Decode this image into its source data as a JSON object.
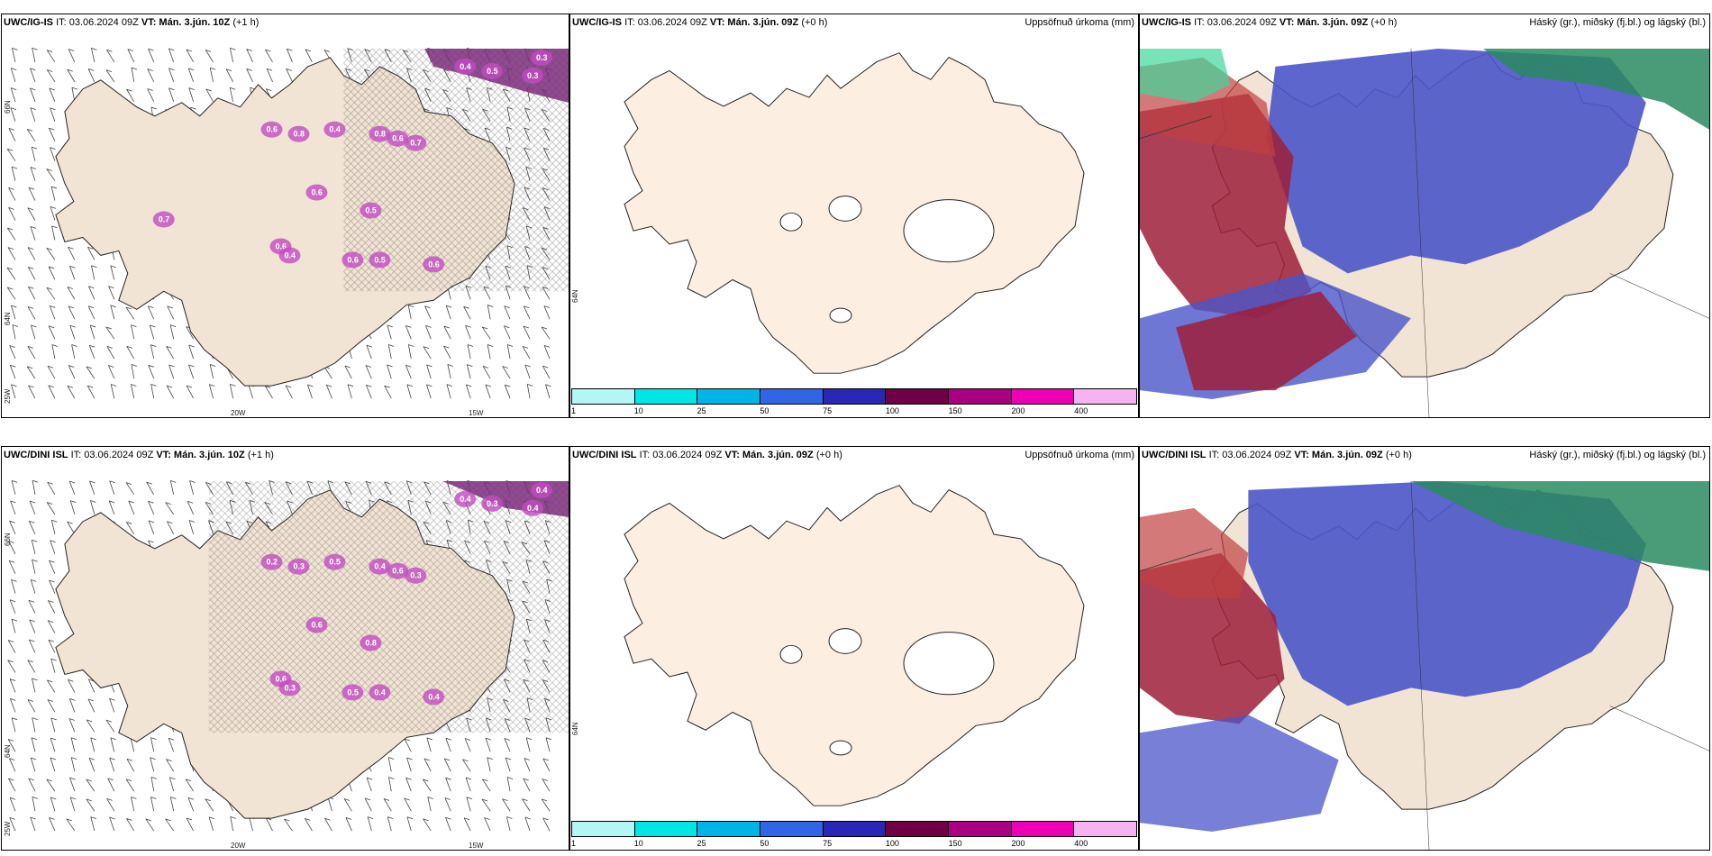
{
  "rows": [
    {
      "model_label": "UWC/IG-IS",
      "panels": [
        {
          "model": "UWC/IG-IS",
          "it": "IT: 03.06.2024 09Z",
          "vt": "VT: Mán. 3.jún. 10Z",
          "lead": "(+1 h)",
          "right_title": ""
        },
        {
          "model": "UWC/IG-IS",
          "it": "IT: 03.06.2024 09Z",
          "vt": "VT: Mán. 3.jún. 09Z",
          "lead": "(+0 h)",
          "right_title": "Uppsöfnuð úrkoma (mm)"
        },
        {
          "model": "UWC/IG-IS",
          "it": "IT: 03.06.2024 09Z",
          "vt": "VT: Mán. 3.jún. 09Z",
          "lead": "(+0 h)",
          "right_title": "Háský (gr.), miðský (fj.bl.) og lágský (bl.)"
        }
      ]
    },
    {
      "model_label": "UWC/DINI ISL",
      "panels": [
        {
          "model": "UWC/DINI ISL",
          "it": "IT: 03.06.2024 09Z",
          "vt": "VT: Mán. 3.jún. 10Z",
          "lead": "(+1 h)",
          "right_title": ""
        },
        {
          "model": "UWC/DINI ISL",
          "it": "IT: 03.06.2024 09Z",
          "vt": "VT: Mán. 3.jún. 09Z",
          "lead": "(+0 h)",
          "right_title": "Uppsöfnuð úrkoma (mm)"
        },
        {
          "model": "UWC/DINI ISL",
          "it": "IT: 03.06.2024 09Z",
          "vt": "VT: Mán. 3.jún. 09Z",
          "lead": "(+0 h)",
          "right_title": "Háský (gr.), miðský (fj.bl.) og lágský (bl.)"
        }
      ]
    }
  ],
  "axis_labels": {
    "lat_66": "66N",
    "lat_64": "64N",
    "lon_25": "25W",
    "lon_20": "20W",
    "lon_15": "15W"
  },
  "precip_colorbar": {
    "ticks": [
      "1",
      "10",
      "25",
      "50",
      "75",
      "100",
      "150",
      "200",
      "400"
    ],
    "colors": [
      "#b4f5f5",
      "#00e6e6",
      "#00b4e6",
      "#3264e6",
      "#2828b4",
      "#6e0046",
      "#aa0082",
      "#f000b4",
      "#f5b4f0"
    ]
  },
  "wind_panel_labels": {
    "top": [
      "0.4",
      "0.5",
      "0.3",
      "0.3",
      "0.6",
      "0.8",
      "0.4",
      "0.8",
      "0.6",
      "0.7",
      "0.6",
      "0.5",
      "0.6",
      "0.4",
      "0.6",
      "0.5",
      "0.6",
      "0.7"
    ],
    "bottom": [
      "0.4",
      "0.3",
      "0.4",
      "0.4",
      "0.2",
      "0.3",
      "0.5",
      "0.4",
      "0.6",
      "0.3",
      "0.6",
      "0.8",
      "0.6",
      "0.3",
      "0.5",
      "0.4",
      "0.4"
    ]
  },
  "colors": {
    "land": "#f5e6d6",
    "land_precip": "#fcefe2",
    "cloud_high": "#2fae7a",
    "cloud_mid": "#b5303a",
    "cloud_low": "#4a55c8",
    "precip_mark": "#b040b0"
  }
}
